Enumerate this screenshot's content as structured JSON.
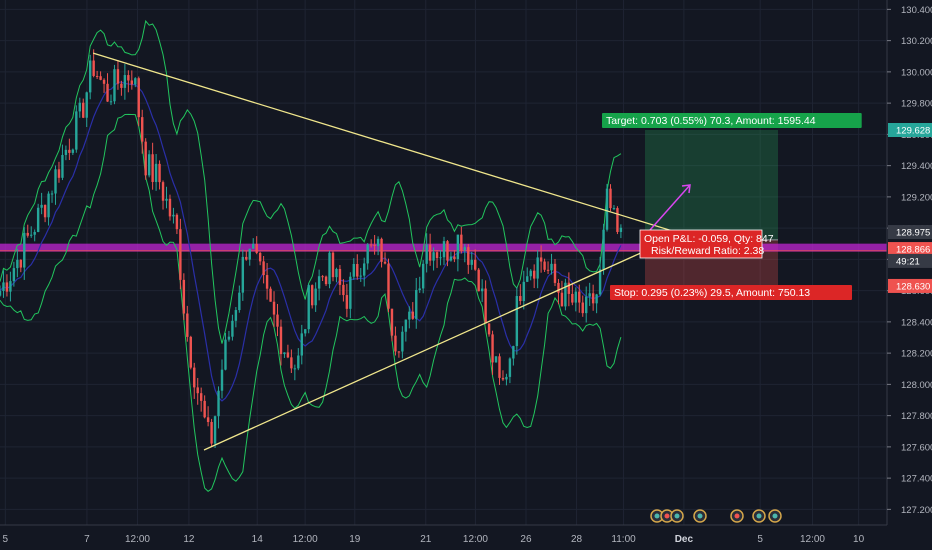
{
  "chart_data": {
    "type": "candlestick",
    "y_axis": {
      "ticks": [
        "130.400",
        "130.200",
        "130.000",
        "129.800",
        "129.600",
        "129.400",
        "129.200",
        "129.000",
        "128.800",
        "128.600",
        "128.400",
        "128.200",
        "128.000",
        "127.800",
        "127.600",
        "127.400",
        "127.200"
      ],
      "range": [
        127.1,
        130.46
      ]
    },
    "x_axis": {
      "ticks": [
        {
          "label": "5",
          "bold": false
        },
        {
          "label": "7",
          "bold": false
        },
        {
          "label": "12:00",
          "bold": false
        },
        {
          "label": "12",
          "bold": false
        },
        {
          "label": "14",
          "bold": false
        },
        {
          "label": "12:00",
          "bold": false
        },
        {
          "label": "19",
          "bold": false
        },
        {
          "label": "21",
          "bold": false
        },
        {
          "label": "12:00",
          "bold": false
        },
        {
          "label": "26",
          "bold": false
        },
        {
          "label": "28",
          "bold": false
        },
        {
          "label": "11:00",
          "bold": false
        },
        {
          "label": "Dec",
          "bold": true
        },
        {
          "label": "5",
          "bold": false
        },
        {
          "label": "12:00",
          "bold": false
        },
        {
          "label": "10",
          "bold": false
        }
      ]
    },
    "price_tags": [
      {
        "label": "129.628",
        "value": 129.628,
        "color": "#26a69a"
      },
      {
        "label": "128.975",
        "value": 128.975,
        "color": "#363a45"
      },
      {
        "label": "128.866",
        "value": 128.866,
        "color": "#ef5350"
      },
      {
        "label": "49:21",
        "value": 128.79,
        "color": "#363a45"
      },
      {
        "label": "128.630",
        "value": 128.63,
        "color": "#ef5350"
      }
    ],
    "position": {
      "entry": 128.925,
      "target": 129.628,
      "stop": 128.63,
      "target_label": "Target: 0.703 (0.55%) 70.3, Amount: 1595.44",
      "stop_label": "Stop: 0.295 (0.23%) 29.5, Amount: 750.13",
      "pnl_label": "Open P&L: -0.059, Qty: 847",
      "ratio_label": "Risk/Reward Ratio: 2.38"
    },
    "trendlines": [
      {
        "from": [
          0.105,
          130.12
        ],
        "to": [
          0.765,
          128.97
        ],
        "color": "#f0e68c"
      },
      {
        "from": [
          0.23,
          127.58
        ],
        "to": [
          0.765,
          128.95
        ],
        "color": "#f0e68c"
      }
    ],
    "horizontal_band": {
      "value": 128.875,
      "color": "#c026d3"
    },
    "horizontal_line": {
      "value": 128.855,
      "color": "#ef5350"
    },
    "anchors": [
      [
        0.0,
        128.6
      ],
      [
        0.02,
        128.8
      ],
      [
        0.05,
        129.15
      ],
      [
        0.07,
        129.45
      ],
      [
        0.09,
        129.7
      ],
      [
        0.105,
        130.05
      ],
      [
        0.12,
        129.85
      ],
      [
        0.135,
        129.95
      ],
      [
        0.15,
        130.0
      ],
      [
        0.165,
        129.4
      ],
      [
        0.18,
        129.3
      ],
      [
        0.2,
        128.95
      ],
      [
        0.21,
        128.35
      ],
      [
        0.225,
        127.9
      ],
      [
        0.237,
        127.6
      ],
      [
        0.25,
        128.1
      ],
      [
        0.265,
        128.5
      ],
      [
        0.28,
        128.95
      ],
      [
        0.3,
        128.55
      ],
      [
        0.32,
        128.25
      ],
      [
        0.335,
        128.1
      ],
      [
        0.35,
        128.6
      ],
      [
        0.37,
        128.75
      ],
      [
        0.39,
        128.55
      ],
      [
        0.41,
        128.85
      ],
      [
        0.43,
        128.85
      ],
      [
        0.445,
        128.3
      ],
      [
        0.46,
        128.35
      ],
      [
        0.48,
        128.9
      ],
      [
        0.5,
        128.85
      ],
      [
        0.52,
        128.95
      ],
      [
        0.54,
        128.7
      ],
      [
        0.55,
        128.3
      ],
      [
        0.565,
        127.95
      ],
      [
        0.575,
        128.2
      ],
      [
        0.59,
        128.75
      ],
      [
        0.61,
        128.8
      ],
      [
        0.63,
        128.6
      ],
      [
        0.65,
        128.5
      ],
      [
        0.66,
        128.45
      ],
      [
        0.675,
        128.6
      ],
      [
        0.685,
        129.2
      ],
      [
        0.695,
        128.95
      ],
      [
        0.7,
        128.93
      ]
    ]
  }
}
